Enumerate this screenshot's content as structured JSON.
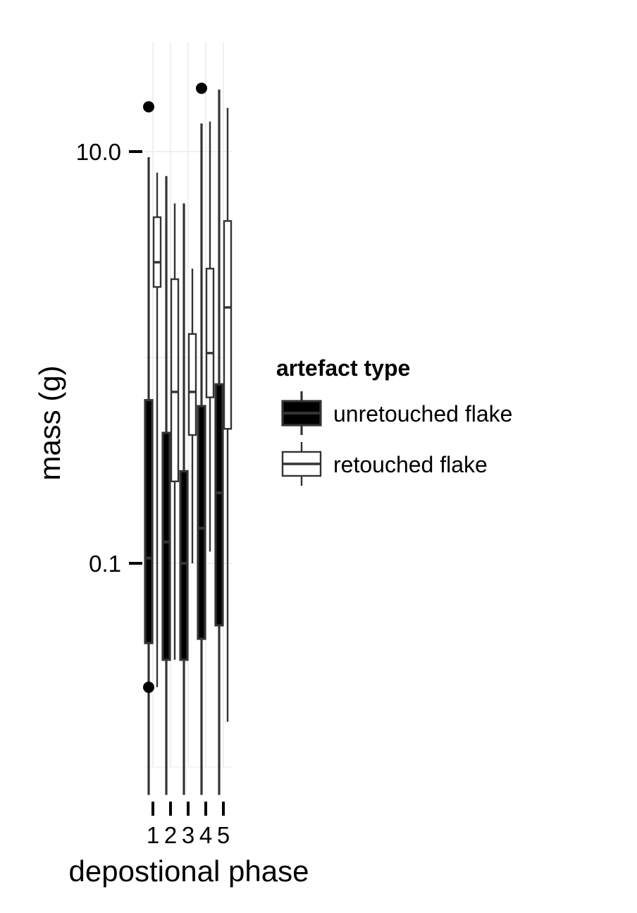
{
  "chart_data": {
    "type": "boxplot",
    "xlabel": "depostional phase",
    "ylabel": "mass (g)",
    "y_scale": "log10",
    "ylim": [
      0.0075,
      20
    ],
    "y_ticks": [
      {
        "value": 0.1,
        "label": "0.1"
      },
      {
        "value": 10,
        "label": "10.0"
      }
    ],
    "categories": [
      "1",
      "2",
      "3",
      "4",
      "5"
    ],
    "grid": "light",
    "legend": {
      "title": "artefact type",
      "position": "right",
      "entries": [
        "unretouched flake",
        "retouched flake"
      ]
    },
    "series": [
      {
        "name": "unretouched flake",
        "fill": "#000000",
        "boxes": [
          {
            "category": "1",
            "min": 0.0075,
            "q1": 0.041,
            "median": 0.106,
            "q3": 0.62,
            "max": 9.4,
            "outliers": [
              16.5,
              0.025
            ]
          },
          {
            "category": "2",
            "min": 0.0075,
            "q1": 0.034,
            "median": 0.127,
            "q3": 0.43,
            "max": 7.6,
            "outliers": []
          },
          {
            "category": "3",
            "min": 0.0075,
            "q1": 0.034,
            "median": 0.1,
            "q3": 0.28,
            "max": 5.6,
            "outliers": []
          },
          {
            "category": "4",
            "min": 0.0075,
            "q1": 0.043,
            "median": 0.148,
            "q3": 0.58,
            "max": 13.7,
            "outliers": [
              20.3
            ]
          },
          {
            "category": "5",
            "min": 0.0075,
            "q1": 0.05,
            "median": 0.22,
            "q3": 0.74,
            "max": 20.0,
            "outliers": []
          }
        ]
      },
      {
        "name": "retouched flake",
        "fill": "#ffffff",
        "boxes": [
          {
            "category": "1",
            "min": 0.025,
            "q1": 2.2,
            "median": 2.9,
            "q3": 4.8,
            "max": 7.9,
            "outliers": []
          },
          {
            "category": "2",
            "min": 0.034,
            "q1": 0.25,
            "median": 0.68,
            "q3": 2.4,
            "max": 5.6,
            "outliers": []
          },
          {
            "category": "3",
            "min": 0.1,
            "q1": 0.42,
            "median": 0.68,
            "q3": 1.3,
            "max": 2.7,
            "outliers": []
          },
          {
            "category": "4",
            "min": 0.114,
            "q1": 0.64,
            "median": 1.05,
            "q3": 2.7,
            "max": 14.0,
            "outliers": []
          },
          {
            "category": "5",
            "min": 0.017,
            "q1": 0.45,
            "median": 1.75,
            "q3": 4.6,
            "max": 16.3,
            "outliers": []
          }
        ]
      }
    ]
  }
}
